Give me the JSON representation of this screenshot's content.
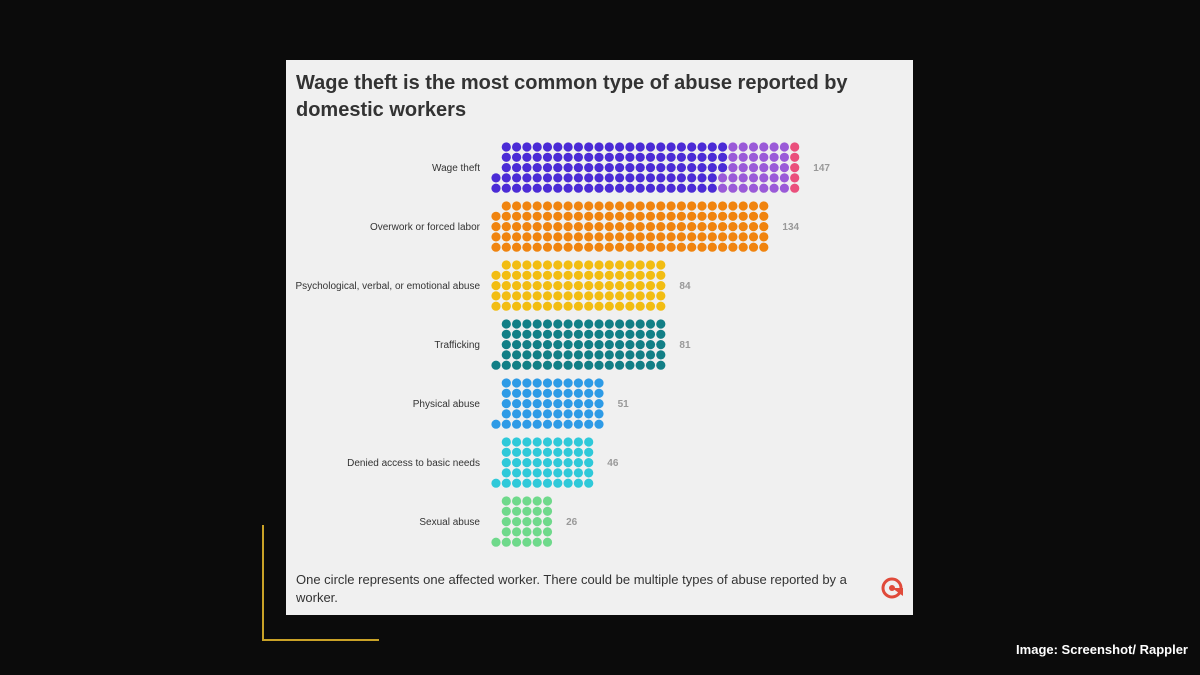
{
  "title": "Wage theft is the most common type of abuse reported by domestic workers",
  "footnote": "One circle represents one affected worker. There could be multiple types of abuse reported by a worker.",
  "credit": "Image: Screenshot/ Rappler",
  "icons": {
    "logo": "rappler-logo-icon"
  },
  "colors": {
    "wage_theft": [
      "#4b2bd6",
      "#9a5ad8",
      "#ea4f7c"
    ],
    "overwork": "#f0840f",
    "psychological": "#f2bd12",
    "trafficking": "#127f86",
    "physical": "#2e9be6",
    "basic_needs": "#2fc9d9",
    "sexual": "#6fd98b",
    "logo": "#e04a3a"
  },
  "chart_data": {
    "type": "waffle",
    "unit": "One circle represents one affected worker",
    "categories": [
      "Wage theft",
      "Overwork or forced labor",
      "Psychological, verbal, or emotional abuse",
      "Trafficking",
      "Physical abuse",
      "Denied access to basic needs",
      "Sexual abuse"
    ],
    "values": [
      147,
      134,
      84,
      81,
      51,
      46,
      26
    ],
    "segments": [
      [
        110,
        32,
        5
      ],
      [
        134
      ],
      [
        84
      ],
      [
        81
      ],
      [
        51
      ],
      [
        46
      ],
      [
        26
      ]
    ]
  }
}
